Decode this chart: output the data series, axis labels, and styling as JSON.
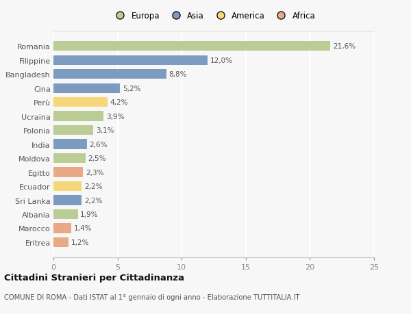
{
  "countries": [
    "Romania",
    "Filippine",
    "Bangladesh",
    "Cina",
    "Perù",
    "Ucraina",
    "Polonia",
    "India",
    "Moldova",
    "Egitto",
    "Ecuador",
    "Sri Lanka",
    "Albania",
    "Marocco",
    "Eritrea"
  ],
  "values": [
    21.6,
    12.0,
    8.8,
    5.2,
    4.2,
    3.9,
    3.1,
    2.6,
    2.5,
    2.3,
    2.2,
    2.2,
    1.9,
    1.4,
    1.2
  ],
  "labels": [
    "21,6%",
    "12,0%",
    "8,8%",
    "5,2%",
    "4,2%",
    "3,9%",
    "3,1%",
    "2,6%",
    "2,5%",
    "2,3%",
    "2,2%",
    "2,2%",
    "1,9%",
    "1,4%",
    "1,2%"
  ],
  "continents": [
    "Europa",
    "Asia",
    "Asia",
    "Asia",
    "America",
    "Europa",
    "Europa",
    "Asia",
    "Europa",
    "Africa",
    "America",
    "Asia",
    "Europa",
    "Africa",
    "Africa"
  ],
  "colors": {
    "Europa": "#b5c98a",
    "Asia": "#7090bb",
    "America": "#f5d56e",
    "Africa": "#e8a07a"
  },
  "legend_order": [
    "Europa",
    "Asia",
    "America",
    "Africa"
  ],
  "xlim": [
    0,
    25
  ],
  "xticks": [
    0,
    5,
    10,
    15,
    20,
    25
  ],
  "title": "Cittadini Stranieri per Cittadinanza",
  "subtitle": "COMUNE DI ROMA - Dati ISTAT al 1° gennaio di ogni anno - Elaborazione TUTTITALIA.IT",
  "bg_color": "#f7f7f7",
  "grid_color": "#ffffff",
  "bar_height": 0.7
}
